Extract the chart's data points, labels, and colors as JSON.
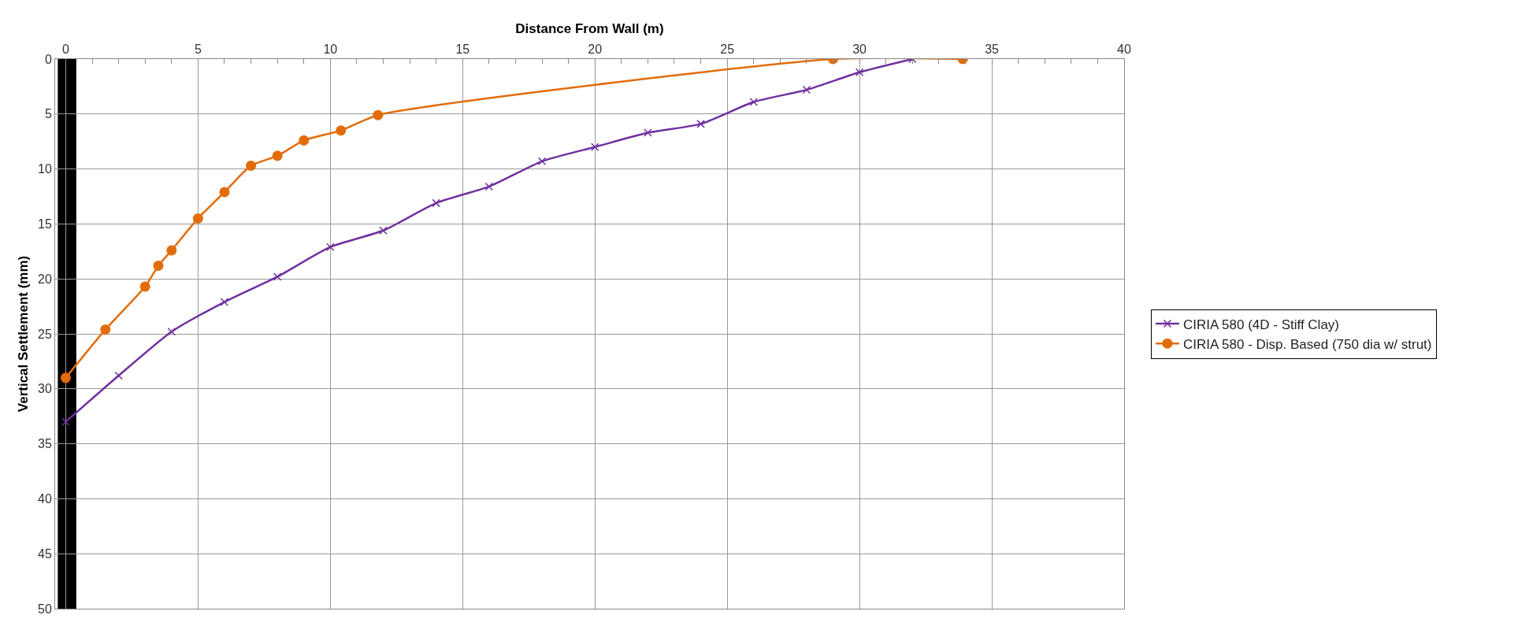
{
  "chart_data": {
    "type": "line",
    "xlabel": "Distance From Wall (m)",
    "ylabel": "Vertical Settlement (mm)",
    "xlim": [
      -0.4,
      40
    ],
    "xticks": [
      0,
      {
        "value": 1,
        "label": null
      },
      {
        "value": 2,
        "label": null
      },
      {
        "value": 3,
        "label": null
      },
      {
        "value": 4,
        "label": null
      },
      5,
      {
        "value": 6,
        "label": null
      },
      {
        "value": 7,
        "label": null
      },
      {
        "value": 8,
        "label": null
      },
      {
        "value": 9,
        "label": null
      },
      10,
      {
        "value": 11,
        "label": null
      },
      {
        "value": 12,
        "label": null
      },
      {
        "value": 13,
        "label": null
      },
      {
        "value": 14,
        "label": null
      },
      15,
      {
        "value": 16,
        "label": null
      },
      {
        "value": 17,
        "label": null
      },
      {
        "value": 18,
        "label": null
      },
      {
        "value": 19,
        "label": null
      },
      20,
      {
        "value": 21,
        "label": null
      },
      {
        "value": 22,
        "label": null
      },
      {
        "value": 23,
        "label": null
      },
      {
        "value": 24,
        "label": null
      },
      25,
      {
        "value": 26,
        "label": null
      },
      {
        "value": 27,
        "label": null
      },
      {
        "value": 28,
        "label": null
      },
      {
        "value": 29,
        "label": null
      },
      30,
      {
        "value": 31,
        "label": null
      },
      {
        "value": 32,
        "label": null
      },
      {
        "value": 33,
        "label": null
      },
      {
        "value": 34,
        "label": null
      },
      35,
      {
        "value": 36,
        "label": null
      },
      {
        "value": 37,
        "label": null
      },
      {
        "value": 38,
        "label": null
      },
      {
        "value": 39,
        "label": null
      },
      40
    ],
    "ylim": [
      50,
      0
    ],
    "yticks": [
      0,
      5,
      10,
      15,
      20,
      25,
      30,
      35,
      40,
      45,
      50
    ],
    "grid": true,
    "legend": "right",
    "line_style": "solid",
    "bands": [
      {
        "axis": "x",
        "from": -0.3,
        "to": 0.4,
        "color": "#000000"
      }
    ],
    "series": [
      {
        "name": "CIRIA 580 (4D - Stiff Clay)",
        "color": "#7030a0",
        "marker": "cross",
        "x": [
          0,
          2,
          4,
          6,
          8,
          10,
          12,
          14,
          16,
          18,
          20,
          22,
          24,
          26,
          28,
          30,
          32
        ],
        "values": [
          33,
          28.8,
          24.8,
          22.1,
          19.8,
          17.1,
          15.6,
          13.1,
          11.6,
          9.3,
          8,
          6.7,
          5.9,
          3.9,
          2.8,
          1.2,
          0
        ]
      },
      {
        "name": "CIRIA 580 - Disp. Based (750 dia w/ strut)",
        "color": "#e36c0a",
        "marker": "circle",
        "x": [
          0,
          1.5,
          3,
          3.5,
          4,
          5,
          6,
          7,
          8,
          9,
          10.4,
          11.8,
          29,
          33.9
        ],
        "values": [
          29,
          24.6,
          20.7,
          18.8,
          17.4,
          14.5,
          12.1,
          9.7,
          8.8,
          7.4,
          6.5,
          5.1,
          0,
          0
        ]
      }
    ]
  }
}
